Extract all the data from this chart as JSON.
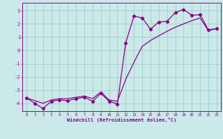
{
  "xlabel": "Windchill (Refroidissement éolien,°C)",
  "background_color": "#cbe9e9",
  "line_color": "#880088",
  "grid_color": "#a0cccc",
  "x_ticks": [
    0,
    1,
    2,
    3,
    4,
    5,
    6,
    7,
    8,
    9,
    10,
    11,
    12,
    13,
    14,
    15,
    16,
    17,
    18,
    19,
    20,
    21,
    22,
    23
  ],
  "ylim": [
    -4.6,
    3.6
  ],
  "xlim": [
    -0.5,
    23.5
  ],
  "yticks": [
    -4,
    -3,
    -2,
    -1,
    0,
    1,
    2,
    3
  ],
  "line1_x": [
    0,
    1,
    2,
    3,
    4,
    5,
    6,
    7,
    8,
    9,
    10,
    11,
    12,
    13,
    14,
    15,
    16,
    17,
    18,
    19,
    20,
    21,
    22,
    23
  ],
  "line1_y": [
    -3.6,
    -4.0,
    -4.4,
    -3.85,
    -3.75,
    -3.8,
    -3.65,
    -3.55,
    -3.85,
    -3.25,
    -3.85,
    -4.05,
    0.55,
    2.6,
    2.45,
    1.6,
    2.15,
    2.2,
    2.85,
    3.1,
    2.65,
    2.7,
    1.55,
    1.65
  ],
  "line2_x": [
    0,
    2,
    3,
    4,
    5,
    6,
    7,
    8,
    9,
    10,
    11,
    12,
    13,
    14,
    15,
    16,
    17,
    18,
    19,
    20,
    21,
    22,
    23
  ],
  "line2_y": [
    -3.6,
    -4.0,
    -3.75,
    -3.65,
    -3.65,
    -3.55,
    -3.45,
    -3.65,
    -3.15,
    -3.75,
    -3.85,
    -2.2,
    -0.9,
    0.3,
    0.75,
    1.1,
    1.45,
    1.75,
    2.0,
    2.25,
    2.45,
    1.5,
    1.65
  ]
}
